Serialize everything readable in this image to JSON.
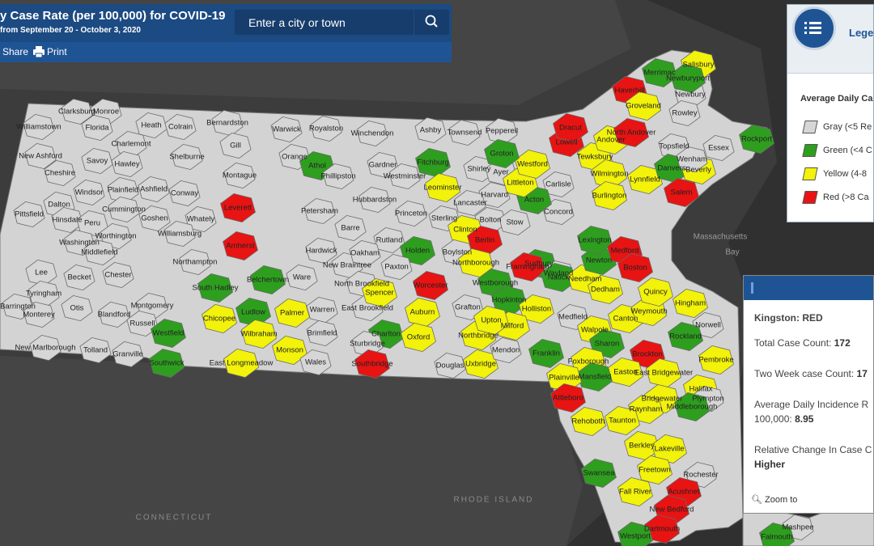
{
  "header": {
    "title": "y Case Rate (per 100,000) for COVID-19",
    "subtitle": "from September 20 - October 3, 2020",
    "search_placeholder": "Enter a city or town",
    "share": "Share",
    "print": "Print"
  },
  "legend": {
    "title": "Lege",
    "heading": "Average Daily Ca",
    "items": [
      {
        "label": "Gray (<5 Re",
        "color": "#d6d6d6"
      },
      {
        "label": "Green (<4 C",
        "color": "#2e9e1f"
      },
      {
        "label": "Yellow (4-8",
        "color": "#f2f20a"
      },
      {
        "label": "Red (>8 Ca",
        "color": "#e81313"
      }
    ]
  },
  "popup": {
    "title": "Kingston: RED",
    "zoom": "Zoom to",
    "rows": [
      {
        "label": "Total Case Count:",
        "value": "172"
      },
      {
        "label": "Two Week case Count:",
        "value": "17"
      },
      {
        "label": "Average Daily Incidence R",
        "label_2": "100,000:",
        "value": "8.95"
      },
      {
        "label": "Relative Change In Case C",
        "value": "Higher"
      }
    ]
  },
  "map": {
    "water_labels": [
      "Massachusetts",
      "Bay"
    ],
    "region_labels": [
      "CONNECTICUT",
      "RHODE ISLAND"
    ],
    "towns": [
      "Clarksburg",
      "Monroe",
      "Williamstown",
      "Florida",
      "Heath",
      "Colrain",
      "Bernardston",
      "Warwick",
      "Royalston",
      "Winchendon",
      "Ashby",
      "Townsend",
      "Pepperell",
      "Charlemont",
      "Gill",
      "Orange",
      "Athol",
      "Gardner",
      "Fitchburg",
      "Shirley",
      "Ayer",
      "New Ashford",
      "Savoy",
      "Hawley",
      "Shelburne",
      "Montague",
      "Phillipston",
      "Westminster",
      "Leominster",
      "Harvard",
      "Cheshire",
      "Windsor",
      "Plainfield",
      "Ashfield",
      "Conway",
      "Hubbardston",
      "Lancaster",
      "Dalton",
      "Cummington",
      "Leverett",
      "Petersham",
      "Princeton",
      "Sterling",
      "Bolton",
      "Pittsfield",
      "Hinsdale",
      "Peru",
      "Goshen",
      "Whately",
      "Barre",
      "Clinton",
      "Stow",
      "Worthington",
      "Williamsburg",
      "Amherst",
      "Hardwick",
      "Rutland",
      "Boylston",
      "Berlin",
      "Washington",
      "Middlefield",
      "Northampton",
      "New Braintree",
      "Oakham",
      "Holden",
      "Sudbury",
      "Wayland",
      "Lee",
      "Becket",
      "Chester",
      "Belchertown",
      "Ware",
      "Paxton",
      "Northborough",
      "Framingham",
      "Tyringham",
      "South Hadley",
      "North Brookfield",
      "Worcester",
      "Westborough",
      "Natick",
      "Needham",
      "Otis",
      "Blandford",
      "Montgomery",
      "Chicopee",
      "Ludlow",
      "Palmer",
      "Warren",
      "East Brookfield",
      "Auburn",
      "Grafton",
      "Hopkinton",
      "Holliston",
      "Medfield",
      "Russell",
      "Westfield",
      "Wilbraham",
      "Brimfield",
      "Spencer",
      "Charlton",
      "Oxford",
      "Northbridge",
      "Milford",
      "Upton",
      "Walpole",
      "Tolland",
      "Granville",
      "Monson",
      "Wales",
      "Sturbridge",
      "Southbridge",
      "Douglas",
      "Uxbridge",
      "Mendon",
      "Franklin",
      "Sharon",
      "Southwick",
      "East Longmeadow",
      "Barrington",
      "Monterey",
      "New Marlborough",
      "Foxborough",
      "Canton",
      "Weymouth",
      "Quincy",
      "Dedham",
      "Newton",
      "Lexington",
      "Medford",
      "Boston",
      "Concord",
      "Carlisle",
      "Acton",
      "Littleton",
      "Westford",
      "Groton",
      "Lowell",
      "Dracut",
      "Tewksbury",
      "Wilmington",
      "Burlington",
      "Lynnfield",
      "Andover",
      "North Andover",
      "Haverhill",
      "Groveland",
      "Newbury",
      "Rowley",
      "Merrimac",
      "Salisbury",
      "Newburyport",
      "Topsfield",
      "Essex",
      "Danvers",
      "Beverly",
      "Wenham",
      "Salem",
      "Rockport",
      "Hingham",
      "Norwell",
      "Rockland",
      "Pembroke",
      "Halifax",
      "Plympton",
      "Brockton",
      "East Bridgewater",
      "Bridgewater",
      "Easton",
      "Mansfield",
      "Plainville",
      "Attleboro",
      "Raynham",
      "Taunton",
      "Middleborough",
      "Rehoboth",
      "Berkley",
      "Lakeville",
      "Swansea",
      "Freetown",
      "Rochester",
      "Fall River",
      "Acushnet",
      "New Bedford",
      "Dartmouth",
      "Westport",
      "Mashpee",
      "Falmouth"
    ]
  }
}
